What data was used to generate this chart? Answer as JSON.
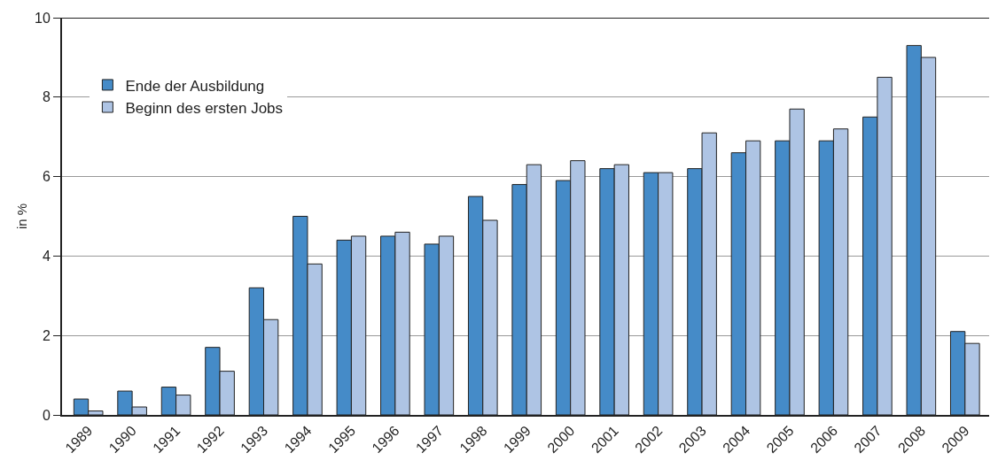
{
  "chart_data": {
    "type": "bar",
    "ylabel": "in %",
    "categories": [
      "1989",
      "1990",
      "1991",
      "1992",
      "1993",
      "1994",
      "1995",
      "1996",
      "1997",
      "1998",
      "1999",
      "2000",
      "2001",
      "2002",
      "2003",
      "2004",
      "2005",
      "2006",
      "2007",
      "2008",
      "2009"
    ],
    "series": [
      {
        "name": "Ende der Ausbildung",
        "color": "#458bc8",
        "values": [
          0.4,
          0.6,
          0.7,
          1.7,
          3.2,
          5.0,
          4.4,
          4.5,
          4.3,
          5.5,
          5.8,
          5.9,
          6.2,
          6.1,
          6.2,
          6.6,
          6.9,
          6.9,
          7.5,
          9.3,
          2.1
        ]
      },
      {
        "name": "Beginn des ersten Jobs",
        "color": "#aec4e4",
        "values": [
          0.1,
          0.2,
          0.5,
          1.1,
          2.4,
          3.8,
          4.5,
          4.6,
          4.5,
          4.9,
          6.3,
          6.4,
          6.3,
          6.1,
          7.1,
          6.9,
          7.7,
          7.2,
          8.5,
          9.0,
          1.8
        ]
      }
    ],
    "ylim": [
      0,
      10
    ],
    "yticks": [
      0,
      2,
      4,
      6,
      8,
      10
    ],
    "grid": "y",
    "legend": "top left"
  }
}
